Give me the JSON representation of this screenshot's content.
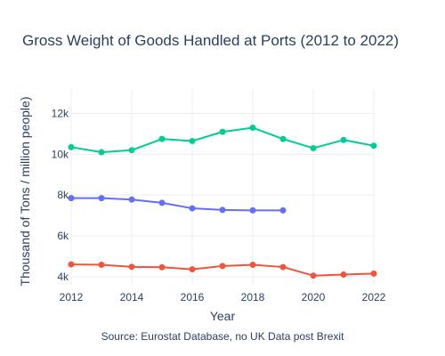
{
  "chart_data": {
    "type": "line",
    "title": "Gross Weight of Goods Handled at Ports (2012 to 2022)",
    "xlabel": "Year",
    "ylabel": "Thousand of Tons / million people)",
    "source_note": "Source: Eurostat Database, no UK Data post Brexit",
    "xlim": [
      2012,
      2022
    ],
    "ylim": [
      3600,
      13200
    ],
    "x_ticks": [
      2012,
      2014,
      2016,
      2018,
      2020,
      2022
    ],
    "x_tick_labels": [
      "2012",
      "2014",
      "2016",
      "2018",
      "2020",
      "2022"
    ],
    "y_ticks": [
      4000,
      6000,
      8000,
      10000,
      12000
    ],
    "y_tick_labels": [
      "4k",
      "6k",
      "8k",
      "10k",
      "12k"
    ],
    "grid": true,
    "legend": false,
    "series": [
      {
        "color": "#00cc96",
        "x": [
          2012,
          2013,
          2014,
          2015,
          2016,
          2017,
          2018,
          2019,
          2020,
          2021,
          2022
        ],
        "values": [
          10350,
          10100,
          10200,
          10750,
          10650,
          11100,
          11300,
          10750,
          10300,
          10700,
          10420
        ]
      },
      {
        "color": "#636efa",
        "x": [
          2012,
          2013,
          2014,
          2015,
          2016,
          2017,
          2018,
          2019
        ],
        "values": [
          7850,
          7850,
          7780,
          7620,
          7350,
          7270,
          7250,
          7250
        ]
      },
      {
        "color": "#ef553b",
        "x": [
          2012,
          2013,
          2014,
          2015,
          2016,
          2017,
          2018,
          2019,
          2020,
          2021,
          2022
        ],
        "values": [
          4600,
          4580,
          4480,
          4460,
          4360,
          4520,
          4580,
          4470,
          4050,
          4100,
          4150
        ]
      }
    ]
  }
}
